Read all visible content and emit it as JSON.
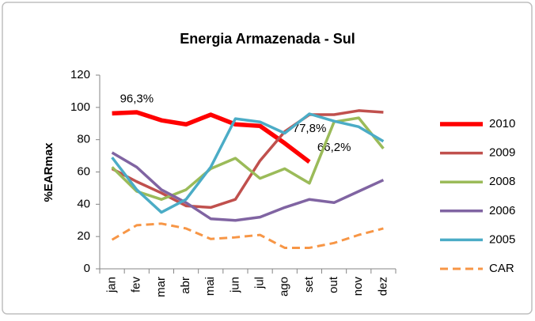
{
  "chart_data": {
    "type": "line",
    "title": "Energia Armazenada - Sul",
    "ylabel": "%EARmax",
    "categories": [
      "jan",
      "fev",
      "mar",
      "abr",
      "mai",
      "jun",
      "jul",
      "ago",
      "set",
      "out",
      "nov",
      "dez"
    ],
    "ylim": [
      0,
      120
    ],
    "yticks": [
      0,
      20,
      40,
      60,
      80,
      100,
      120
    ],
    "grid": false,
    "legend": "right",
    "series": [
      {
        "name": "2010",
        "color": "#ff0000",
        "line_width": 5.5,
        "line_style": "solid",
        "values": [
          96.3,
          97,
          92,
          89.5,
          95.5,
          89.5,
          88.5,
          77.8,
          66.2,
          null,
          null,
          null
        ],
        "value_labels": [
          "96,3%",
          null,
          null,
          null,
          null,
          null,
          null,
          "77,8%",
          "66,2%",
          null,
          null,
          null
        ]
      },
      {
        "name": "2009",
        "color": "#c0504d",
        "line_width": 3.5,
        "line_style": "solid",
        "values": [
          62,
          54,
          47,
          39,
          38,
          43,
          67,
          85,
          95.5,
          95.5,
          98,
          97
        ]
      },
      {
        "name": "2008",
        "color": "#9bbb59",
        "line_width": 3.5,
        "line_style": "solid",
        "values": [
          63,
          48,
          43,
          49,
          62,
          68.5,
          56,
          62,
          53,
          91,
          93.5,
          74.5
        ]
      },
      {
        "name": "2006",
        "color": "#8064a2",
        "line_width": 3.5,
        "line_style": "solid",
        "values": [
          72,
          63,
          49,
          41,
          31,
          30,
          32,
          38,
          43,
          41,
          48,
          55
        ]
      },
      {
        "name": "2005",
        "color": "#4bacc6",
        "line_width": 3.5,
        "line_style": "solid",
        "values": [
          69,
          49,
          35,
          43,
          63,
          93,
          91,
          84,
          96,
          91.5,
          88,
          79
        ]
      },
      {
        "name": "CAR",
        "color": "#f79646",
        "line_width": 3,
        "line_style": "dashed",
        "values": [
          18,
          27,
          28,
          25,
          18.5,
          19.5,
          21,
          13,
          13,
          16,
          21,
          25
        ]
      }
    ]
  }
}
